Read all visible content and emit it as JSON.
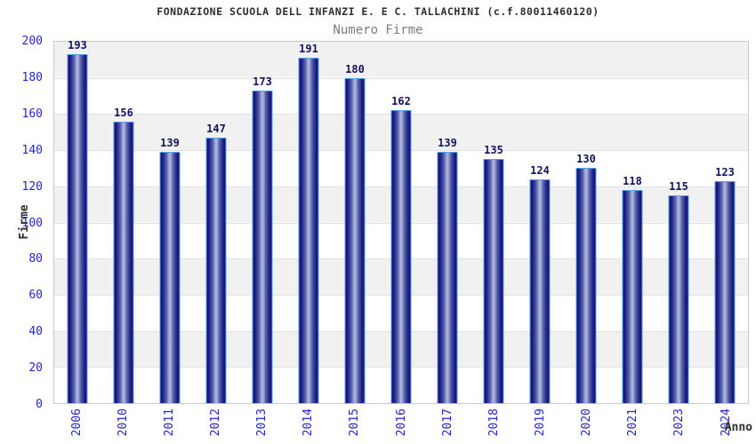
{
  "chart": {
    "title": "FONDAZIONE SCUOLA DELL INFANZI E. E C. TALLACHINI (c.f.80011460120)",
    "subtitle": "Numero Firme",
    "ylabel": "Firme",
    "xlabel": "Anno"
  },
  "chart_data": {
    "type": "bar",
    "title": "FONDAZIONE SCUOLA DELL INFANZI E. E C. TALLACHINI (c.f.80011460120)",
    "subtitle": "Numero Firme",
    "xlabel": "Anno",
    "ylabel": "Firme",
    "categories": [
      "2006",
      "2010",
      "2011",
      "2012",
      "2013",
      "2014",
      "2015",
      "2016",
      "2017",
      "2018",
      "2019",
      "2020",
      "2021",
      "2023",
      "2024"
    ],
    "values": [
      193,
      156,
      139,
      147,
      173,
      191,
      180,
      162,
      139,
      135,
      124,
      130,
      118,
      115,
      123
    ],
    "ylim": [
      0,
      200
    ],
    "ytick_step": 20,
    "yticks": [
      0,
      20,
      40,
      60,
      80,
      100,
      120,
      140,
      160,
      180,
      200
    ],
    "grid": true,
    "legend": "none",
    "bar_labels_shown": true,
    "colors": {
      "bar_dark": "#10106e",
      "bar_light": "#a9b3dc",
      "bar_border": "#54a2ee",
      "axis_tick_label": "#2424cc",
      "value_label": "#14145e",
      "title_text": "#2e2e2e",
      "subtitle_text": "#7b7b7b",
      "band_gray": "#f1f1f1",
      "band_white": "#ffffff",
      "plot_border": "#c9c9c9"
    }
  }
}
